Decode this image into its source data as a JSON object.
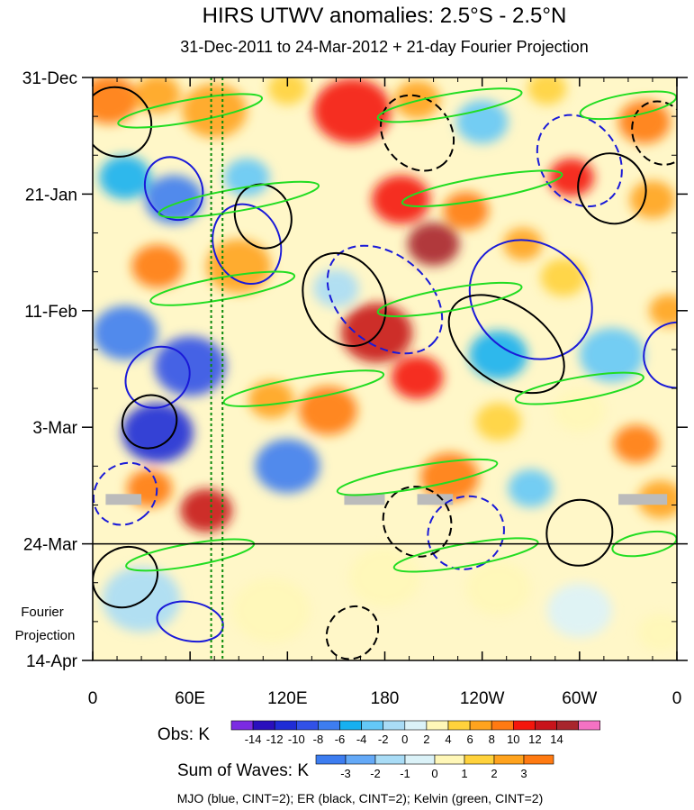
{
  "chart_data": {
    "type": "heatmap",
    "title": "HIRS UTWV anomalies: 2.5°S - 2.5°N",
    "subtitle": "31-Dec-2011 to 24-Mar-2012 + 21-day Fourier Projection",
    "x_ticks": [
      "0",
      "60E",
      "120E",
      "180",
      "120W",
      "60W",
      "0"
    ],
    "x_tick_longitudes": [
      0,
      60,
      120,
      180,
      240,
      300,
      360
    ],
    "y_ticks": [
      "31-Dec",
      "21-Jan",
      "11-Feb",
      "3-Mar",
      "24-Mar",
      "14-Apr"
    ],
    "y_tick_days": [
      0,
      21,
      42,
      63,
      84,
      105
    ],
    "projection_label_line1": "Fourier",
    "projection_label_line2": "Projection",
    "projection_start_day": 84,
    "dotted_lines_longitude": [
      73,
      80
    ],
    "obs_legend": {
      "label": "Obs: K",
      "tick_labels": [
        "-14",
        "-12",
        "-10",
        "-8",
        "-6",
        "-4",
        "-2",
        "0",
        "2",
        "4",
        "6",
        "8",
        "10",
        "12",
        "14"
      ],
      "colors": [
        "#7b2be2",
        "#2a0fbd",
        "#1f2cd6",
        "#3151e8",
        "#3d7df0",
        "#16b0f0",
        "#64c8f7",
        "#a9dcf6",
        "#dbf2f8",
        "#fff7b8",
        "#ffd23c",
        "#ffa31e",
        "#ff7a12",
        "#f4160c",
        "#c8141b",
        "#a8262d",
        "#f472c3"
      ]
    },
    "waves_legend": {
      "label": "Sum of Waves: K",
      "tick_labels": [
        "-3",
        "-2",
        "-1",
        "0",
        "1",
        "2",
        "3"
      ],
      "colors": [
        "#3d7df0",
        "#64a9f7",
        "#a9dcf6",
        "#dbf2f8",
        "#fff7b8",
        "#ffd23c",
        "#ffa31e",
        "#ff7a12"
      ]
    },
    "footer": "MJO (blue, CINT=2); ER (black, CINT=2); Kelvin (green, CINT=2)",
    "series_colors": {
      "mjo": "#1a1ad8",
      "er": "#000000",
      "kelvin": "#22dd22",
      "kelvin_dark": "#0a8a0a"
    },
    "anomaly_blobs": [
      {
        "lon": 10,
        "day": 4,
        "r": 18,
        "v": 8
      },
      {
        "lon": 40,
        "day": 3,
        "r": 14,
        "v": 6
      },
      {
        "lon": 75,
        "day": 6,
        "r": 20,
        "v": 7
      },
      {
        "lon": 120,
        "day": 2,
        "r": 12,
        "v": 5
      },
      {
        "lon": 160,
        "day": 6,
        "r": 24,
        "v": 10
      },
      {
        "lon": 200,
        "day": 4,
        "r": 14,
        "v": 6
      },
      {
        "lon": 240,
        "day": 8,
        "r": 16,
        "v": -4
      },
      {
        "lon": 280,
        "day": 2,
        "r": 12,
        "v": 4
      },
      {
        "lon": 340,
        "day": 8,
        "r": 16,
        "v": 8
      },
      {
        "lon": 20,
        "day": 18,
        "r": 16,
        "v": -6
      },
      {
        "lon": 50,
        "day": 22,
        "r": 18,
        "v": -8
      },
      {
        "lon": 95,
        "day": 18,
        "r": 14,
        "v": -4
      },
      {
        "lon": 190,
        "day": 22,
        "r": 18,
        "v": 10
      },
      {
        "lon": 210,
        "day": 30,
        "r": 16,
        "v": 14
      },
      {
        "lon": 230,
        "day": 24,
        "r": 14,
        "v": 8
      },
      {
        "lon": 295,
        "day": 18,
        "r": 14,
        "v": 10
      },
      {
        "lon": 265,
        "day": 30,
        "r": 12,
        "v": 6
      },
      {
        "lon": 345,
        "day": 22,
        "r": 14,
        "v": 6
      },
      {
        "lon": 40,
        "day": 34,
        "r": 16,
        "v": 8
      },
      {
        "lon": 90,
        "day": 34,
        "r": 20,
        "v": 6
      },
      {
        "lon": 150,
        "day": 38,
        "r": 14,
        "v": -2
      },
      {
        "lon": 290,
        "day": 36,
        "r": 14,
        "v": 4
      },
      {
        "lon": 20,
        "day": 46,
        "r": 20,
        "v": -8
      },
      {
        "lon": 60,
        "day": 52,
        "r": 22,
        "v": -10
      },
      {
        "lon": 175,
        "day": 46,
        "r": 22,
        "v": 12
      },
      {
        "lon": 200,
        "day": 54,
        "r": 16,
        "v": 10
      },
      {
        "lon": 250,
        "day": 50,
        "r": 18,
        "v": -6
      },
      {
        "lon": 320,
        "day": 50,
        "r": 20,
        "v": -4
      },
      {
        "lon": 355,
        "day": 42,
        "r": 12,
        "v": 6
      },
      {
        "lon": 40,
        "day": 64,
        "r": 22,
        "v": -12
      },
      {
        "lon": 110,
        "day": 58,
        "r": 14,
        "v": 6
      },
      {
        "lon": 145,
        "day": 60,
        "r": 18,
        "v": 8
      },
      {
        "lon": 250,
        "day": 62,
        "r": 14,
        "v": 4
      },
      {
        "lon": 300,
        "day": 60,
        "r": 16,
        "v": 2
      },
      {
        "lon": 335,
        "day": 66,
        "r": 14,
        "v": 8
      },
      {
        "lon": 35,
        "day": 74,
        "r": 14,
        "v": 8
      },
      {
        "lon": 70,
        "day": 78,
        "r": 16,
        "v": 12
      },
      {
        "lon": 120,
        "day": 70,
        "r": 20,
        "v": -8
      },
      {
        "lon": 220,
        "day": 72,
        "r": 18,
        "v": 8
      },
      {
        "lon": 270,
        "day": 74,
        "r": 14,
        "v": -4
      },
      {
        "lon": 350,
        "day": 76,
        "r": 14,
        "v": 6
      },
      {
        "lon": 30,
        "day": 94,
        "r": 24,
        "v": -2
      },
      {
        "lon": 110,
        "day": 96,
        "r": 24,
        "v": 3
      },
      {
        "lon": 180,
        "day": 90,
        "r": 22,
        "v": 2
      },
      {
        "lon": 250,
        "day": 92,
        "r": 20,
        "v": 3
      },
      {
        "lon": 300,
        "day": 96,
        "r": 20,
        "v": 1
      },
      {
        "lon": 350,
        "day": 100,
        "r": 14,
        "v": 2
      }
    ],
    "missing_bars": [
      {
        "lon0": 8,
        "lon1": 30,
        "day": 76
      },
      {
        "lon0": 155,
        "lon1": 180,
        "day": 76
      },
      {
        "lon0": 200,
        "lon1": 222,
        "day": 76
      },
      {
        "lon0": 324,
        "lon1": 354,
        "day": 76
      }
    ],
    "contours": [
      {
        "s": "mjo",
        "lon": 50,
        "day": 20,
        "a": 20,
        "b": 5,
        "rot": -60,
        "dash": false
      },
      {
        "s": "mjo",
        "lon": 95,
        "day": 30,
        "a": 25,
        "b": 6,
        "rot": -70,
        "dash": false
      },
      {
        "s": "mjo",
        "lon": 40,
        "day": 54,
        "a": 18,
        "b": 6,
        "rot": -55,
        "dash": false
      },
      {
        "s": "mjo",
        "lon": 180,
        "day": 40,
        "a": 40,
        "b": 8,
        "rot": -40,
        "dash": true
      },
      {
        "s": "mjo",
        "lon": 270,
        "day": 40,
        "a": 40,
        "b": 10,
        "rot": -40,
        "dash": false
      },
      {
        "s": "mjo",
        "lon": 300,
        "day": 15,
        "a": 30,
        "b": 7,
        "rot": -55,
        "dash": true
      },
      {
        "s": "mjo",
        "lon": 360,
        "day": 50,
        "a": 20,
        "b": 6,
        "rot": -60,
        "dash": false
      },
      {
        "s": "mjo",
        "lon": 60,
        "day": 98,
        "a": 12,
        "b": 6,
        "rot": 80,
        "dash": false
      },
      {
        "s": "mjo",
        "lon": 230,
        "day": 82,
        "a": 22,
        "b": 7,
        "rot": -60,
        "dash": true
      },
      {
        "s": "mjo",
        "lon": 20,
        "day": 75,
        "a": 18,
        "b": 6,
        "rot": -50,
        "dash": true
      },
      {
        "s": "er",
        "lon": 15,
        "day": 8,
        "a": 22,
        "b": 6,
        "rot": -50,
        "dash": false
      },
      {
        "s": "er",
        "lon": 105,
        "day": 25,
        "a": 20,
        "b": 5,
        "rot": -70,
        "dash": false
      },
      {
        "s": "er",
        "lon": 35,
        "day": 62,
        "a": 16,
        "b": 5,
        "rot": -55,
        "dash": false
      },
      {
        "s": "er",
        "lon": 200,
        "day": 10,
        "a": 25,
        "b": 6,
        "rot": -50,
        "dash": true
      },
      {
        "s": "er",
        "lon": 155,
        "day": 40,
        "a": 30,
        "b": 7,
        "rot": -60,
        "dash": false
      },
      {
        "s": "er",
        "lon": 255,
        "day": 48,
        "a": 40,
        "b": 7,
        "rot": -35,
        "dash": false
      },
      {
        "s": "er",
        "lon": 320,
        "day": 20,
        "a": 22,
        "b": 6,
        "rot": -60,
        "dash": false
      },
      {
        "s": "er",
        "lon": 350,
        "day": 10,
        "a": 20,
        "b": 5,
        "rot": -65,
        "dash": true
      },
      {
        "s": "er",
        "lon": 200,
        "day": 80,
        "a": 22,
        "b": 6,
        "rot": -55,
        "dash": true
      },
      {
        "s": "er",
        "lon": 300,
        "day": 82,
        "a": 20,
        "b": 6,
        "rot": -45,
        "dash": false
      },
      {
        "s": "er",
        "lon": 160,
        "day": 100,
        "a": 15,
        "b": 5,
        "rot": -40,
        "dash": true
      },
      {
        "s": "er",
        "lon": 20,
        "day": 90,
        "a": 18,
        "b": 6,
        "rot": -60,
        "dash": false
      },
      {
        "s": "kelvin",
        "lon": 60,
        "day": 6,
        "a": 45,
        "b": 2,
        "rot": 10,
        "dash": false
      },
      {
        "s": "kelvin",
        "lon": 220,
        "day": 5,
        "a": 45,
        "b": 2,
        "rot": 10,
        "dash": false
      },
      {
        "s": "kelvin",
        "lon": 330,
        "day": 5,
        "a": 30,
        "b": 2,
        "rot": 10,
        "dash": false
      },
      {
        "s": "kelvin",
        "lon": 90,
        "day": 22,
        "a": 50,
        "b": 2,
        "rot": 10,
        "dash": false
      },
      {
        "s": "kelvin",
        "lon": 240,
        "day": 20,
        "a": 50,
        "b": 2,
        "rot": 10,
        "dash": false
      },
      {
        "s": "kelvin",
        "lon": 80,
        "day": 38,
        "a": 45,
        "b": 2,
        "rot": 10,
        "dash": false
      },
      {
        "s": "kelvin",
        "lon": 220,
        "day": 40,
        "a": 45,
        "b": 2,
        "rot": 10,
        "dash": false
      },
      {
        "s": "kelvin",
        "lon": 130,
        "day": 56,
        "a": 50,
        "b": 2,
        "rot": 10,
        "dash": false
      },
      {
        "s": "kelvin",
        "lon": 300,
        "day": 56,
        "a": 40,
        "b": 2,
        "rot": 10,
        "dash": false
      },
      {
        "s": "kelvin",
        "lon": 200,
        "day": 72,
        "a": 50,
        "b": 2,
        "rot": 10,
        "dash": false
      },
      {
        "s": "kelvin",
        "lon": 60,
        "day": 86,
        "a": 40,
        "b": 2,
        "rot": 10,
        "dash": false
      },
      {
        "s": "kelvin",
        "lon": 230,
        "day": 86,
        "a": 45,
        "b": 2,
        "rot": 10,
        "dash": false
      },
      {
        "s": "kelvin",
        "lon": 340,
        "day": 84,
        "a": 20,
        "b": 2,
        "rot": 10,
        "dash": false
      }
    ]
  }
}
